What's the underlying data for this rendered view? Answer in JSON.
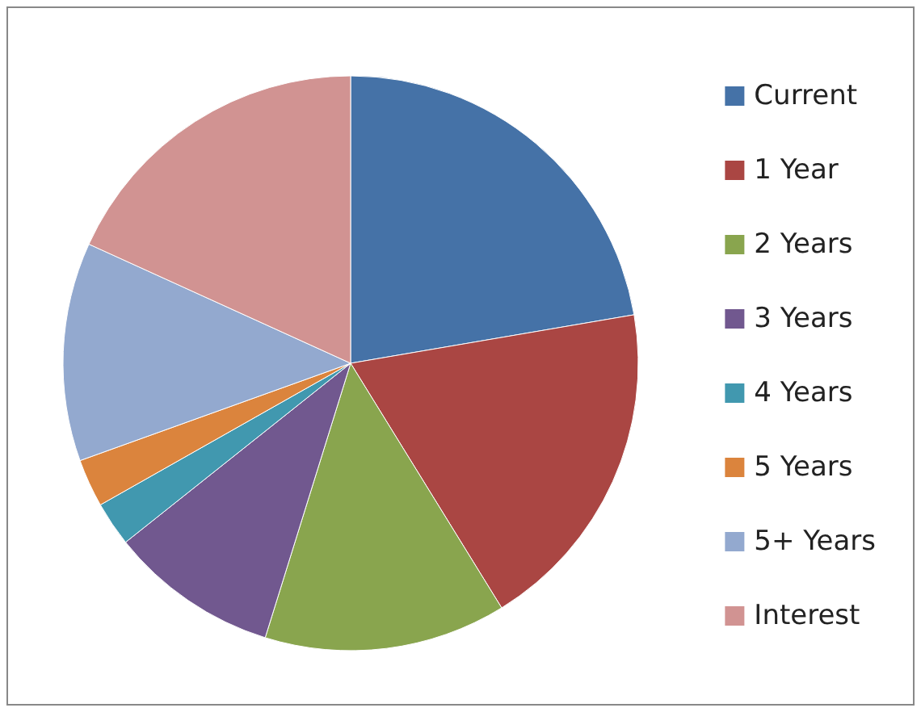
{
  "chart_data": {
    "type": "pie",
    "categories": [
      "Current",
      "1 Year",
      "2 Years",
      "3 Years",
      "4 Years",
      "5 Years",
      "5+ Years",
      "Interest"
    ],
    "values": [
      22.3,
      18.9,
      13.6,
      9.5,
      2.5,
      2.7,
      12.3,
      18.2
    ],
    "colors": [
      "#4572a7",
      "#aa4643",
      "#89a54e",
      "#71588f",
      "#4198af",
      "#db843d",
      "#93a9cf",
      "#d19392"
    ],
    "legend": "right"
  }
}
